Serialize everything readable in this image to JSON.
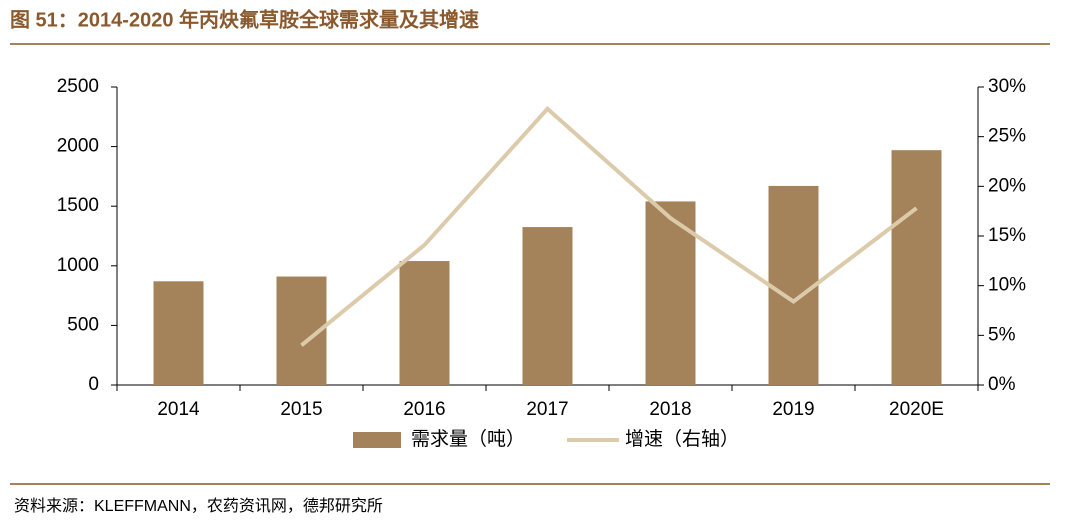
{
  "chart_data": {
    "type": "bar-line",
    "title": "图 51：2014-2020 年丙炔氟草胺全球需求量及其增速",
    "source": "资料来源：KLEFFMANN，农药资讯网，德邦研究所",
    "categories": [
      "2014",
      "2015",
      "2016",
      "2017",
      "2018",
      "2019",
      "2020E"
    ],
    "series": [
      {
        "name": "需求量（吨）",
        "type": "bar",
        "color": "#a5835a",
        "values": [
          870,
          910,
          1040,
          1325,
          1540,
          1670,
          1970
        ]
      },
      {
        "name": "增速（右轴）",
        "type": "line",
        "axis": "y2",
        "color": "#dccbab",
        "values": [
          null,
          4.0,
          14.1,
          27.8,
          16.8,
          8.4,
          17.8
        ]
      }
    ],
    "ylim": [
      0,
      2500
    ],
    "yticks": [
      0,
      500,
      1000,
      1500,
      2000,
      2500
    ],
    "y2lim": [
      0,
      30
    ],
    "y2ticks": [
      {
        "value": 0,
        "label": "0%"
      },
      {
        "value": 5,
        "label": "5%"
      },
      {
        "value": 10,
        "label": "10%"
      },
      {
        "value": 15,
        "label": "15%"
      },
      {
        "value": 20,
        "label": "20%"
      },
      {
        "value": 25,
        "label": "25%"
      },
      {
        "value": 30,
        "label": "30%"
      }
    ],
    "legend": "bottom"
  }
}
